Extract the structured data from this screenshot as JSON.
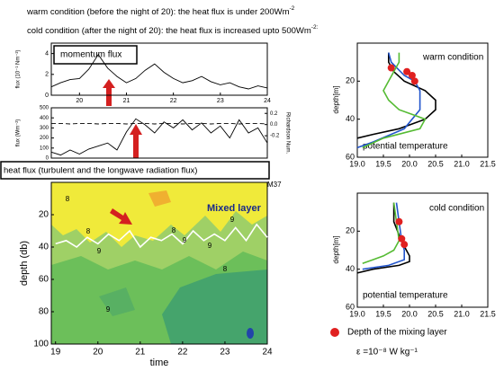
{
  "notes": [
    {
      "text": "warm condition (before the night of 20): the heat flux is under 200Wm",
      "sup": "-2"
    },
    {
      "text": "cold condition (after the night of 20): the heat flux is increased upto 500Wm",
      "sup": "-2:"
    }
  ],
  "legend": {
    "marker_label": "Depth of the mixing layer",
    "marker_color": "#e02020",
    "epsilon": "ε =10⁻⁸ W kg⁻¹"
  },
  "chart_data": [
    {
      "type": "line",
      "label": "momentum flux",
      "ylabel": "flux (10⁻¹ Nm⁻²)",
      "x": [
        19.4,
        19.6,
        19.8,
        20.0,
        20.2,
        20.4,
        20.6,
        20.8,
        21.0,
        21.2,
        21.4,
        21.6,
        21.8,
        22.0,
        22.2,
        22.4,
        22.6,
        22.8,
        23.0,
        23.2,
        23.4,
        23.6,
        23.8,
        24.0
      ],
      "xlim": [
        19.4,
        24
      ],
      "xticks": [
        20,
        21,
        22,
        23,
        24
      ],
      "ylim": [
        0,
        5
      ],
      "yticks": [
        0,
        2,
        4
      ],
      "series": [
        {
          "color": "#000000",
          "values": [
            0.8,
            1.2,
            1.5,
            1.6,
            2.5,
            3.9,
            2.6,
            1.8,
            1.2,
            1.6,
            2.4,
            3.0,
            2.2,
            1.6,
            1.2,
            1.4,
            1.8,
            1.3,
            1.0,
            1.2,
            0.8,
            0.6,
            0.9,
            0.7
          ]
        }
      ]
    },
    {
      "type": "line",
      "label": "heat flux    (turbulent and the longwave radiation flux)",
      "ylabel": "flux (Wm⁻²)",
      "y2label": "Richardson Num.",
      "annotation": "M37",
      "x": [
        19.4,
        19.6,
        19.8,
        20.0,
        20.2,
        20.4,
        20.6,
        20.8,
        21.0,
        21.2,
        21.4,
        21.6,
        21.8,
        22.0,
        22.2,
        22.4,
        22.6,
        22.8,
        23.0,
        23.2,
        23.4,
        23.6,
        23.8,
        24.0
      ],
      "xlim": [
        19.4,
        24
      ],
      "ylim": [
        0,
        500
      ],
      "yticks": [
        0,
        100,
        200,
        300,
        400,
        500
      ],
      "y2lim": [
        -0.6,
        0.3
      ],
      "y2ticks": [
        -0.2,
        {
          "value": 0,
          "label": "0.0"
        },
        0.2
      ],
      "series": [
        {
          "color": "#000000",
          "values": [
            60,
            30,
            80,
            40,
            90,
            120,
            150,
            80,
            260,
            390,
            330,
            250,
            360,
            300,
            380,
            280,
            350,
            250,
            320,
            200,
            380,
            250,
            300,
            150
          ]
        },
        {
          "color": "#000000",
          "axis": "y2",
          "dashed": true,
          "values": [
            0.02,
            0.02,
            0.01,
            0.02,
            0.02,
            0.01,
            0.02,
            0.02,
            0.01,
            0.02,
            0.02,
            0.01,
            0.02,
            0.02,
            0.01,
            0.02,
            0.02,
            0.01,
            0.02,
            0.02,
            0.01,
            0.02,
            0.02,
            0.01
          ]
        }
      ]
    },
    {
      "type": "contour",
      "label": "Mixed layer",
      "xlabel": "time",
      "ylabel": "depth (db)",
      "y_inverted": true,
      "x": [
        19,
        19.25,
        19.5,
        19.75,
        20,
        20.25,
        20.5,
        20.75,
        21,
        21.25,
        21.5,
        21.75,
        22,
        22.25,
        22.5,
        22.75,
        23,
        23.25,
        23.5,
        23.75,
        24
      ],
      "xlim": [
        18.9,
        24
      ],
      "xticks": [
        19,
        20,
        21,
        22,
        23,
        24
      ],
      "ylim": [
        0,
        100
      ],
      "yticks": [
        20,
        40,
        60,
        80,
        100
      ],
      "series": [
        {
          "color": "#ffffff",
          "values": [
            38,
            36,
            40,
            34,
            38,
            32,
            36,
            30,
            40,
            34,
            36,
            32,
            38,
            30,
            36,
            32,
            36,
            28,
            36,
            26,
            34
          ]
        }
      ],
      "contour_labels": [
        "8",
        "8",
        "9",
        "8",
        "9",
        "9",
        "9",
        "8",
        "9"
      ]
    },
    {
      "type": "profile",
      "label": "warm condition",
      "xlabel": "potential temperature",
      "ylabel": "depth[m]",
      "y_inverted": true,
      "xlim": [
        19,
        21.5
      ],
      "xticks": [
        {
          "value": 19,
          "label": "19.0"
        },
        19.5,
        {
          "value": 20,
          "label": "20.0"
        },
        20.5,
        {
          "value": 21,
          "label": "21.0"
        },
        21.5
      ],
      "ylim": [
        0,
        60
      ],
      "yticks": [
        20,
        40,
        60
      ],
      "series": [
        {
          "color": "#000000",
          "x": [
            19.6,
            19.6,
            19.7,
            19.9,
            20.3,
            20.5,
            20.5,
            20.3,
            19.8,
            19.3,
            19.0
          ],
          "values": [
            5,
            10,
            15,
            20,
            25,
            30,
            35,
            40,
            45,
            48,
            50
          ]
        },
        {
          "color": "#2255cc",
          "x": [
            19.6,
            19.65,
            19.9,
            20.1,
            20.2,
            20.2,
            19.9,
            19.3,
            19.0
          ],
          "values": [
            5,
            10,
            17,
            20,
            25,
            35,
            45,
            52,
            55
          ]
        },
        {
          "color": "#55bb33",
          "x": [
            19.8,
            19.8,
            19.6,
            19.5,
            19.6,
            19.8,
            20.1,
            20.3,
            20.2,
            19.5,
            19.1
          ],
          "values": [
            5,
            10,
            20,
            25,
            30,
            35,
            38,
            40,
            45,
            50,
            55
          ]
        },
        {
          "color": "#e02020",
          "marker": "circle",
          "x": [
            19.65,
            19.95,
            20.05,
            20.1
          ],
          "values": [
            13,
            15,
            17,
            20
          ]
        }
      ]
    },
    {
      "type": "profile",
      "label": "cold condition",
      "xlabel": "potential temperature",
      "ylabel": "depth[m]",
      "y_inverted": true,
      "xlim": [
        19,
        21.5
      ],
      "xticks": [
        {
          "value": 19,
          "label": "19.0"
        },
        19.5,
        {
          "value": 20,
          "label": "20.0"
        },
        20.5,
        {
          "value": 21,
          "label": "21.0"
        },
        21.5
      ],
      "ylim": [
        0,
        60
      ],
      "yticks": [
        20,
        40,
        60
      ],
      "series": [
        {
          "color": "#000000",
          "x": [
            19.7,
            19.7,
            19.8,
            19.9,
            20.0,
            20.0,
            19.8,
            19.3,
            19.0
          ],
          "values": [
            5,
            15,
            22,
            28,
            33,
            36,
            38,
            40,
            42
          ]
        },
        {
          "color": "#2255cc",
          "x": [
            19.75,
            19.8,
            19.85,
            19.9,
            19.9,
            19.6,
            19.1
          ],
          "values": [
            5,
            15,
            25,
            30,
            35,
            38,
            40
          ]
        },
        {
          "color": "#55bb33",
          "x": [
            19.7,
            19.75,
            19.8,
            19.7,
            19.5,
            19.3,
            19.1
          ],
          "values": [
            5,
            15,
            25,
            30,
            33,
            35,
            37
          ]
        },
        {
          "color": "#e02020",
          "marker": "circle",
          "x": [
            19.8,
            19.85,
            19.9
          ],
          "values": [
            15,
            24,
            27
          ]
        }
      ]
    }
  ]
}
